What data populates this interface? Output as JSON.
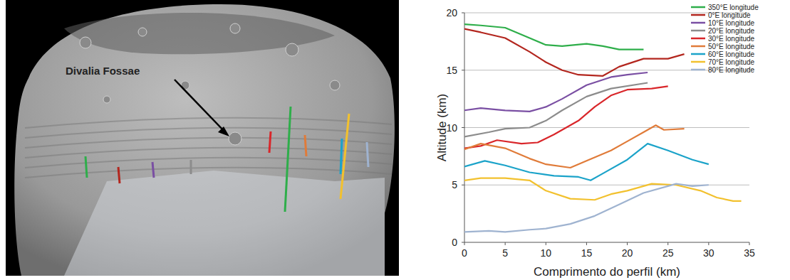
{
  "image_annotation": "Divalia Fossae",
  "chart_data": {
    "type": "line",
    "x_label": "Comprimento do perfil (km)",
    "y_label": "Altitude (km)",
    "xlim": [
      0,
      35
    ],
    "xticks": [
      0,
      5,
      10,
      15,
      20,
      25,
      30,
      35
    ],
    "ylim": [
      0,
      20
    ],
    "yticks": [
      0,
      5,
      10,
      15,
      20
    ],
    "grid": true,
    "legend": "top-right",
    "series": [
      {
        "name": "350°E longitude",
        "color": "#2eae4a",
        "x": [
          0,
          2,
          5,
          8,
          10,
          12,
          15,
          17,
          19,
          22
        ],
        "values": [
          19.0,
          18.9,
          18.7,
          17.8,
          17.2,
          17.1,
          17.3,
          17.1,
          16.8,
          16.8
        ]
      },
      {
        "name": "0°E longitude",
        "color": "#b3261e",
        "x": [
          0,
          2,
          5,
          8,
          10,
          12,
          14,
          17,
          19,
          22,
          25,
          27
        ],
        "values": [
          18.6,
          18.3,
          17.8,
          16.6,
          15.7,
          15.0,
          14.6,
          14.5,
          15.3,
          16.0,
          16.0,
          16.4
        ]
      },
      {
        "name": "10°E longitude",
        "color": "#7a4fa3",
        "x": [
          0,
          2,
          5,
          8,
          10,
          12,
          15,
          18,
          20,
          22.5
        ],
        "values": [
          11.5,
          11.7,
          11.5,
          11.4,
          11.8,
          12.5,
          13.7,
          14.4,
          14.6,
          14.8
        ]
      },
      {
        "name": "20°E longitude",
        "color": "#8c8c8c",
        "x": [
          0,
          3,
          5,
          8,
          10,
          12,
          15,
          18,
          22.5
        ],
        "values": [
          9.2,
          9.6,
          9.9,
          10.0,
          10.6,
          11.5,
          12.7,
          13.4,
          13.9
        ]
      },
      {
        "name": "30°E longitude",
        "color": "#d9262a",
        "x": [
          0,
          2,
          4,
          7,
          9,
          11,
          14,
          16,
          18,
          20,
          23,
          25
        ],
        "values": [
          8.2,
          8.4,
          8.9,
          8.6,
          8.7,
          9.4,
          10.6,
          11.8,
          12.8,
          13.3,
          13.4,
          13.6
        ]
      },
      {
        "name": "50°E longitude",
        "color": "#e07b39",
        "x": [
          0,
          2,
          5,
          8,
          10,
          13,
          15,
          18,
          20,
          22,
          23.5,
          24.5,
          27
        ],
        "values": [
          8.1,
          8.6,
          8.2,
          7.3,
          6.8,
          6.5,
          7.1,
          8.0,
          8.8,
          9.6,
          10.2,
          9.8,
          9.9
        ]
      },
      {
        "name": "60°E longitude",
        "color": "#1ba3c9",
        "x": [
          0,
          2.5,
          5,
          8,
          11,
          14,
          15.5,
          17,
          20,
          22.5,
          25,
          28,
          30
        ],
        "values": [
          6.6,
          7.1,
          6.7,
          6.1,
          5.8,
          5.7,
          5.4,
          6.0,
          7.2,
          8.6,
          8.0,
          7.2,
          6.8
        ]
      },
      {
        "name": "70°E longitude",
        "color": "#f2c12e",
        "x": [
          0,
          2,
          5,
          8,
          10,
          13,
          16,
          18,
          20,
          23,
          26,
          29,
          31,
          33,
          34
        ],
        "values": [
          5.4,
          5.6,
          5.6,
          5.4,
          4.5,
          3.8,
          3.7,
          4.2,
          4.5,
          5.1,
          5.0,
          4.5,
          3.9,
          3.6,
          3.6
        ]
      },
      {
        "name": "80°E longitude",
        "color": "#9fb3d0",
        "x": [
          0,
          3,
          5,
          8,
          10,
          13,
          16,
          19,
          22,
          25,
          26,
          28,
          30
        ],
        "values": [
          0.9,
          1.0,
          0.9,
          1.1,
          1.2,
          1.6,
          2.3,
          3.3,
          4.3,
          4.9,
          5.1,
          4.9,
          5.0
        ]
      }
    ]
  }
}
